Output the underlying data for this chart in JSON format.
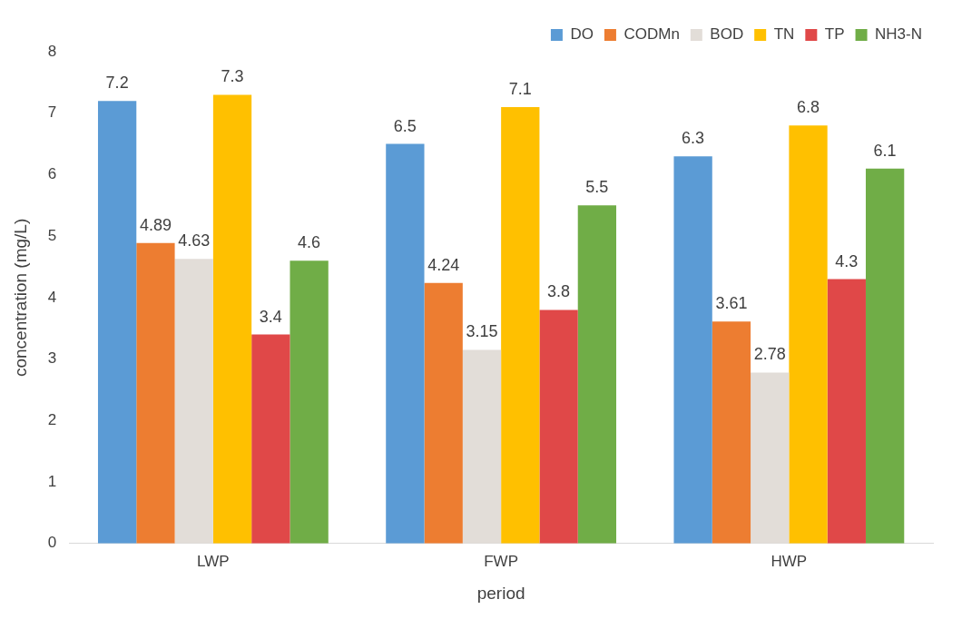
{
  "chart_data": {
    "type": "bar",
    "xlabel": "period",
    "ylabel": "concentration (mg/L)",
    "categories": [
      "LWP",
      "FWP",
      "HWP"
    ],
    "series": [
      {
        "name": "DO",
        "color": "#5b9bd5",
        "values": [
          7.2,
          6.5,
          6.3
        ]
      },
      {
        "name": "CODMn",
        "color": "#ed7d31",
        "values": [
          4.89,
          4.24,
          3.61
        ]
      },
      {
        "name": "BOD",
        "color": "#e2ddd8",
        "values": [
          4.63,
          3.15,
          2.78
        ]
      },
      {
        "name": "TN",
        "color": "#ffc000",
        "values": [
          7.3,
          7.1,
          6.8
        ]
      },
      {
        "name": "TP",
        "color": "#e04848",
        "values": [
          3.4,
          3.8,
          4.3
        ]
      },
      {
        "name": "NH3-N",
        "color": "#70ad47",
        "values": [
          4.6,
          5.5,
          6.1
        ]
      }
    ],
    "ylim": [
      0,
      8
    ],
    "yticks": [
      0,
      1,
      2,
      3,
      4,
      5,
      6,
      7,
      8
    ],
    "grid": false,
    "legend": "top right",
    "data_labels": true
  }
}
